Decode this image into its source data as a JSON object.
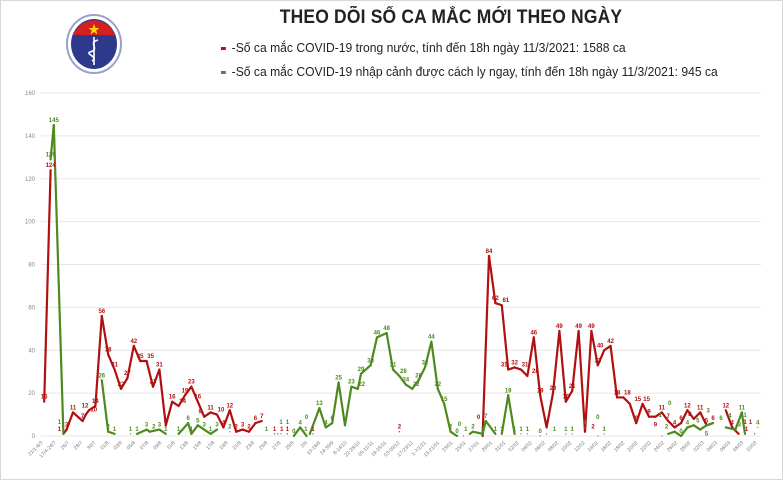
{
  "title": "THEO DÕI SỐ CA MẮC MỚI THEO NGÀY",
  "logo": {
    "text": "BỘ Y TẾ",
    "icon": "ministry-of-health-logo"
  },
  "chart_data": {
    "type": "line",
    "title": "THEO DÕI SỐ CA MẮC MỚI THEO NGÀY",
    "ylim": [
      0,
      160
    ],
    "yticks": [
      "0",
      "20",
      "40",
      "60",
      "80",
      "100",
      "120",
      "140",
      "160"
    ],
    "grid": true,
    "legend_placement": "top",
    "x_tick_labels": [
      "21/1-6/3",
      "17/4-24/7",
      "26/7",
      "28/7",
      "30/7",
      "01/8",
      "03/8",
      "05/8",
      "07/8",
      "09/8",
      "11/8",
      "13/8",
      "15/8",
      "17/8",
      "19/8",
      "21/8",
      "23/8",
      "25/8",
      "27/8",
      "29/8",
      "2/9",
      "10-16/9",
      "24-30/9",
      "8-14/10",
      "22-28/10",
      "05-11/11",
      "19-25/11",
      "03-09/12",
      "17-23/12",
      "1-7/1/21",
      "15-21/01",
      "23/01",
      "25/01",
      "27/01",
      "29/01",
      "31/01",
      "02/02",
      "04/02",
      "06/02",
      "08/02",
      "10/02",
      "12/02",
      "14/02",
      "16/02",
      "18/02",
      "20/02",
      "22/02",
      "24/02",
      "26/02",
      "28/02",
      "02/03",
      "04/03",
      "06/03",
      "08/03",
      "10/03"
    ],
    "x_range": [
      0,
      225
    ],
    "series": [
      {
        "name": "-Số ca mắc COVID-19 trong nước, tính đến 18h ngày 11/3/2021: 1588 ca",
        "color": "#b01010",
        "points": [
          [
            1,
            16
          ],
          [
            3,
            124
          ],
          [
            7,
            1
          ],
          [
            8,
            3
          ],
          [
            10,
            11
          ],
          [
            13,
            7
          ],
          [
            14,
            10
          ],
          [
            15,
            12
          ],
          [
            17,
            14
          ],
          [
            19,
            56
          ],
          [
            21,
            38
          ],
          [
            23,
            31
          ],
          [
            25,
            22
          ],
          [
            27,
            27
          ],
          [
            29,
            42
          ],
          [
            31,
            35
          ],
          [
            33,
            35
          ],
          [
            35,
            23
          ],
          [
            37,
            31
          ],
          [
            39,
            5
          ],
          [
            41,
            16
          ],
          [
            43,
            14
          ],
          [
            45,
            19
          ],
          [
            47,
            23
          ],
          [
            49,
            16
          ],
          [
            51,
            9
          ],
          [
            53,
            11
          ],
          [
            55,
            10
          ],
          [
            57,
            4
          ],
          [
            59,
            12
          ],
          [
            61,
            2
          ],
          [
            63,
            3
          ],
          [
            65,
            2
          ],
          [
            67,
            6
          ],
          [
            69,
            7
          ],
          [
            73,
            1
          ],
          [
            74,
            1
          ],
          [
            77,
            1
          ],
          [
            85,
            1
          ],
          [
            112,
            2
          ],
          [
            138,
            0
          ],
          [
            140,
            84
          ],
          [
            142,
            62
          ],
          [
            144,
            61
          ],
          [
            146,
            31
          ],
          [
            148,
            32
          ],
          [
            150,
            31
          ],
          [
            152,
            28
          ],
          [
            154,
            46
          ],
          [
            156,
            19
          ],
          [
            158,
            4
          ],
          [
            160,
            20
          ],
          [
            162,
            49
          ],
          [
            164,
            16
          ],
          [
            166,
            21
          ],
          [
            168,
            49
          ],
          [
            170,
            2
          ],
          [
            172,
            49
          ],
          [
            174,
            33
          ],
          [
            176,
            40
          ],
          [
            178,
            42
          ],
          [
            180,
            18
          ],
          [
            182,
            18
          ],
          [
            184,
            15
          ],
          [
            186,
            6
          ],
          [
            188,
            15
          ],
          [
            190,
            9
          ],
          [
            192,
            9
          ],
          [
            194,
            11
          ],
          [
            196,
            7
          ],
          [
            198,
            4
          ],
          [
            200,
            6
          ],
          [
            202,
            12
          ],
          [
            204,
            8
          ],
          [
            206,
            11
          ],
          [
            208,
            5
          ],
          [
            210,
            6
          ],
          [
            214,
            12
          ],
          [
            216,
            4
          ],
          [
            218,
            1
          ],
          [
            220,
            1
          ],
          [
            223,
            1
          ]
        ]
      },
      {
        "name": "-Số ca mắc COVID-19 nhập cảnh được cách ly ngay, tính đến 18h ngày 11/3/2021: 945 ca",
        "color": "#4e8a1e",
        "points": [
          [
            3,
            129
          ],
          [
            4,
            145
          ],
          [
            7,
            1
          ],
          [
            19,
            26
          ],
          [
            21,
            2
          ],
          [
            23,
            1
          ],
          [
            28,
            1
          ],
          [
            30,
            1
          ],
          [
            33,
            3
          ],
          [
            34,
            2
          ],
          [
            37,
            3
          ],
          [
            39,
            1
          ],
          [
            43,
            1
          ],
          [
            46,
            6
          ],
          [
            47,
            1
          ],
          [
            49,
            5
          ],
          [
            51,
            3
          ],
          [
            53,
            1
          ],
          [
            55,
            3
          ],
          [
            59,
            2
          ],
          [
            73,
            1
          ],
          [
            75,
            1
          ],
          [
            77,
            1
          ],
          [
            79,
            0
          ],
          [
            81,
            4
          ],
          [
            83,
            0
          ],
          [
            84,
            1
          ],
          [
            87,
            13
          ],
          [
            89,
            4
          ],
          [
            91,
            6
          ],
          [
            93,
            25
          ],
          [
            95,
            5
          ],
          [
            97,
            23
          ],
          [
            99,
            22
          ],
          [
            100,
            29
          ],
          [
            103,
            33
          ],
          [
            105,
            46
          ],
          [
            108,
            48
          ],
          [
            110,
            31
          ],
          [
            112,
            28
          ],
          [
            114,
            24
          ],
          [
            116,
            22
          ],
          [
            118,
            26
          ],
          [
            120,
            32
          ],
          [
            122,
            44
          ],
          [
            124,
            22
          ],
          [
            126,
            15
          ],
          [
            128,
            2
          ],
          [
            130,
            0
          ],
          [
            132,
            0
          ],
          [
            134,
            1
          ],
          [
            135,
            2
          ],
          [
            138,
            1
          ],
          [
            139,
            7
          ],
          [
            142,
            1
          ],
          [
            144,
            1
          ],
          [
            146,
            19
          ],
          [
            148,
            1
          ],
          [
            150,
            1
          ],
          [
            152,
            1
          ],
          [
            156,
            0
          ],
          [
            158,
            1
          ],
          [
            164,
            1
          ],
          [
            166,
            1
          ],
          [
            170,
            4
          ],
          [
            174,
            0
          ],
          [
            176,
            1
          ],
          [
            194,
            0
          ],
          [
            196,
            1
          ],
          [
            198,
            2
          ],
          [
            200,
            0
          ],
          [
            202,
            4
          ],
          [
            204,
            5
          ],
          [
            206,
            3
          ],
          [
            208,
            5
          ],
          [
            210,
            6
          ],
          [
            214,
            4
          ],
          [
            217,
            3
          ],
          [
            219,
            11
          ],
          [
            220,
            1
          ],
          [
            224,
            4
          ]
        ]
      }
    ]
  }
}
